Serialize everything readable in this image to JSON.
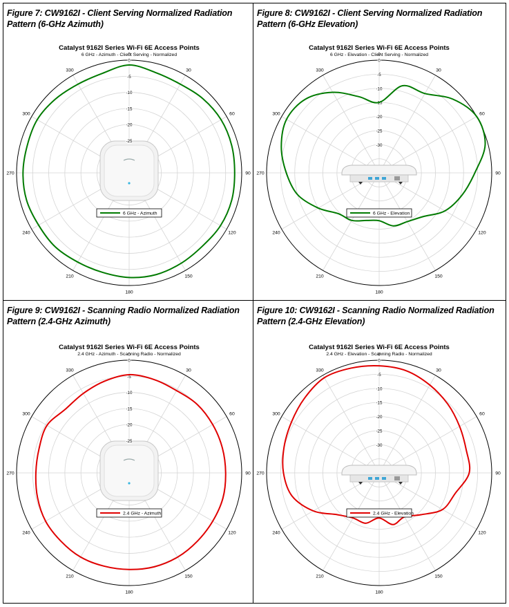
{
  "chart_data": [
    {
      "figure_title": "Figure 7: CW9162I - Client Serving Normalized Radiation Pattern (6-GHz Azimuth)",
      "type": "polar-line",
      "title": "Catalyst 9162I Series Wi-Fi 6E Access Points",
      "subtitle": "6 GHz - Azimuth - Client Serving - Normalized",
      "angle_labels": [
        "0",
        "30",
        "60",
        "90",
        "120",
        "150",
        "180",
        "210",
        "240",
        "270",
        "300",
        "330"
      ],
      "radial_labels": [
        "0",
        "-5",
        "-10",
        "-15",
        "-20",
        "-25"
      ],
      "radial_range_db": [
        -35,
        0
      ],
      "device": "top",
      "legend": "6 GHz - Azimuth",
      "color": "#007a00",
      "series": {
        "name": "6 GHz - Azimuth",
        "angles_deg": [
          0,
          15,
          30,
          45,
          60,
          75,
          90,
          105,
          120,
          135,
          150,
          165,
          180,
          195,
          210,
          225,
          240,
          255,
          270,
          285,
          300,
          315,
          330,
          345
        ],
        "values_db": [
          -1.5,
          -2.8,
          -3.2,
          -2.5,
          -2.0,
          -2.0,
          -2.2,
          -2.0,
          -2.2,
          -2.8,
          -2.6,
          -2.3,
          -2.5,
          -3.0,
          -3.0,
          -2.5,
          -2.5,
          -2.0,
          -2.0,
          -2.2,
          -2.0,
          -2.6,
          -3.2,
          -3.0
        ]
      }
    },
    {
      "figure_title": "Figure 8: CW9162I - Client Serving Normalized Radiation Pattern (6-GHz Elevation)",
      "type": "polar-line",
      "title": "Catalyst 9162I Series Wi-Fi 6E Access Points",
      "subtitle": "6 GHz - Elevation - Client Serving - Normalized",
      "angle_labels": [
        "0",
        "30",
        "60",
        "90",
        "120",
        "150",
        "180",
        "210",
        "240",
        "270",
        "300",
        "330"
      ],
      "radial_labels": [
        "0",
        "-5",
        "-10",
        "-15",
        "-20",
        "-25",
        "-30"
      ],
      "radial_range_db": [
        -40,
        0
      ],
      "device": "side",
      "legend": "6 GHz - Elevation",
      "color": "#007a00",
      "series": {
        "name": "6 GHz - Elevation",
        "angles_deg": [
          0,
          15,
          30,
          45,
          60,
          75,
          90,
          105,
          120,
          135,
          150,
          165,
          180,
          195,
          210,
          225,
          240,
          255,
          270,
          285,
          300,
          315,
          330,
          345
        ],
        "values_db": [
          -15,
          -8,
          -7.5,
          -3,
          0,
          -1,
          -6,
          -9.5,
          -13,
          -18,
          -20,
          -20.5,
          -23,
          -22.5,
          -20.5,
          -19.5,
          -15,
          -10,
          -7,
          -4,
          -2,
          -3,
          -7,
          -12
        ]
      }
    },
    {
      "figure_title": "Figure 9: CW9162I - Scanning Radio Normalized Radiation Pattern (2.4-GHz Azimuth)",
      "type": "polar-line",
      "title": "Catalyst 9162I Series Wi-Fi 6E Access Points",
      "subtitle": "2.4 GHz - Azimuth - Scanning Radio - Normalized",
      "angle_labels": [
        "0",
        "30",
        "60",
        "90",
        "120",
        "150",
        "180",
        "210",
        "240",
        "270",
        "300",
        "330"
      ],
      "radial_labels": [
        "0",
        "-5",
        "-10",
        "-15",
        "-20",
        "-25"
      ],
      "radial_range_db": [
        -35,
        0
      ],
      "device": "top",
      "legend": "2.4 GHz - Azimuth",
      "color": "#e00000",
      "series": {
        "name": "2.4 GHz - Azimuth",
        "angles_deg": [
          0,
          15,
          30,
          45,
          60,
          75,
          90,
          105,
          120,
          135,
          150,
          165,
          180,
          195,
          210,
          225,
          240,
          255,
          270,
          285,
          300,
          315,
          330,
          345
        ],
        "values_db": [
          -4.5,
          -5,
          -5.5,
          -5,
          -5,
          -5,
          -5,
          -4.8,
          -5,
          -5,
          -4.8,
          -4.8,
          -5,
          -5,
          -4.8,
          -5,
          -5,
          -5.5,
          -6,
          -6,
          -5.5,
          -7,
          -6.5,
          -5.5
        ]
      }
    },
    {
      "figure_title": "Figure 10: CW9162I - Scanning Radio Normalized Radiation Pattern (2.4-GHz Elevation)",
      "type": "polar-line",
      "title": "Catalyst 9162I Series Wi-Fi 6E Access Points",
      "subtitle": "2.4 GHz - Elevation - Scanning Radio - Normalized",
      "angle_labels": [
        "0",
        "30",
        "60",
        "90",
        "120",
        "150",
        "180",
        "210",
        "240",
        "270",
        "300",
        "330"
      ],
      "radial_labels": [
        "0",
        "-5",
        "-10",
        "-15",
        "-20",
        "-25",
        "-30"
      ],
      "radial_range_db": [
        -40,
        0
      ],
      "device": "side",
      "legend": "2.4 GHz - Elevation",
      "color": "#e00000",
      "series": {
        "name": "2.4 GHz - Elevation",
        "angles_deg": [
          0,
          15,
          30,
          45,
          60,
          75,
          90,
          105,
          120,
          135,
          150,
          165,
          180,
          195,
          210,
          225,
          240,
          255,
          270,
          285,
          300,
          315,
          330,
          345
        ],
        "values_db": [
          -2,
          -2.5,
          -4,
          -5.5,
          -7,
          -8,
          -8,
          -12,
          -14,
          -19,
          -22,
          -21,
          -24,
          -21.5,
          -21.5,
          -19,
          -13,
          -8,
          -6,
          -5,
          -4,
          -2.5,
          -1,
          -1.5
        ]
      }
    }
  ]
}
